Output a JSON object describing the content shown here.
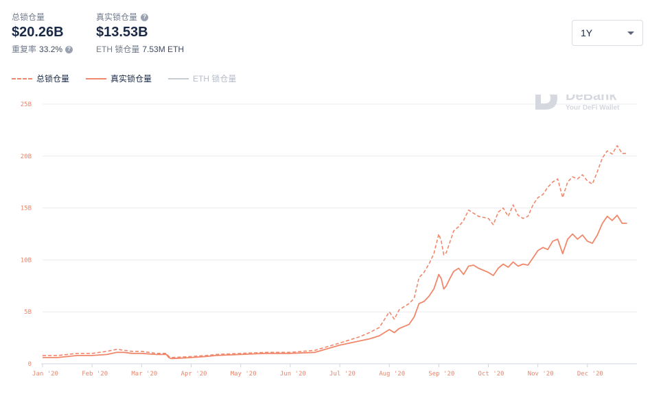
{
  "stats": {
    "total": {
      "label": "总锁仓量",
      "value": "$20.26B",
      "sub_label": "重复率",
      "sub_value": "33.2%"
    },
    "real": {
      "label": "真实锁仓量",
      "value": "$13.53B",
      "sub_label": "ETH 锁仓量",
      "sub_value": "7.53M ETH"
    }
  },
  "range": {
    "selected": "1Y"
  },
  "legend": [
    {
      "label": "总锁仓量",
      "style": "dashed",
      "active": true
    },
    {
      "label": "真实锁仓量",
      "style": "solid",
      "active": true
    },
    {
      "label": "ETH 锁仓量",
      "style": "solid",
      "active": false
    }
  ],
  "watermark": {
    "name": "DeBank",
    "tagline": "Your DeFi Wallet"
  },
  "colors": {
    "line": "#f0876a",
    "axis_text": "#e8846a",
    "grid": "#e9ecf0",
    "inactive": "#c8ccd3"
  },
  "chart_data": {
    "type": "line",
    "x_tick_labels": [
      "Jan '20",
      "Feb '20",
      "Mar '20",
      "Apr '20",
      "May '20",
      "Jun '20",
      "Jul '20",
      "Aug '20",
      "Sep '20",
      "Oct '20",
      "Nov '20",
      "Dec '20"
    ],
    "y_tick_labels": [
      "0",
      "5B",
      "10B",
      "15B",
      "20B",
      "25B"
    ],
    "ylim": [
      0,
      25
    ],
    "y_unit": "B",
    "grid": true,
    "legend_position": "top-left",
    "x": [
      0.0,
      0.3,
      0.5,
      0.7,
      1.0,
      1.3,
      1.5,
      1.65,
      1.8,
      2.0,
      2.3,
      2.5,
      2.55,
      2.6,
      2.8,
      3.0,
      3.3,
      3.5,
      4.0,
      4.5,
      5.0,
      5.5,
      6.0,
      6.2,
      6.4,
      6.6,
      6.8,
      7.0,
      7.1,
      7.2,
      7.3,
      7.4,
      7.5,
      7.6,
      7.7,
      7.8,
      7.9,
      8.0,
      8.05,
      8.1,
      8.15,
      8.2,
      8.3,
      8.4,
      8.5,
      8.6,
      8.7,
      8.8,
      9.0,
      9.1,
      9.2,
      9.3,
      9.4,
      9.5,
      9.6,
      9.7,
      9.8,
      9.9,
      10.0,
      10.1,
      10.2,
      10.3,
      10.4,
      10.5,
      10.6,
      10.7,
      10.8,
      10.9,
      11.0,
      11.1,
      11.2,
      11.3,
      11.4,
      11.5,
      11.6,
      11.7,
      11.8
    ],
    "series": [
      {
        "name": "总锁仓量",
        "style": "dashed",
        "values": [
          0.8,
          0.8,
          0.9,
          1.0,
          1.0,
          1.2,
          1.4,
          1.3,
          1.2,
          1.2,
          1.0,
          1.0,
          0.7,
          0.6,
          0.65,
          0.7,
          0.8,
          0.9,
          1.0,
          1.1,
          1.1,
          1.3,
          2.0,
          2.3,
          2.6,
          3.0,
          3.5,
          5.0,
          4.3,
          5.2,
          5.5,
          5.8,
          6.3,
          8.3,
          8.8,
          9.6,
          10.6,
          12.5,
          11.8,
          10.5,
          10.7,
          11.4,
          12.8,
          13.2,
          13.8,
          14.8,
          14.5,
          14.2,
          14.0,
          13.4,
          14.6,
          15.0,
          14.2,
          15.3,
          14.3,
          14.0,
          14.2,
          15.3,
          16.0,
          16.3,
          17.0,
          17.5,
          17.8,
          16.0,
          17.5,
          18.0,
          17.8,
          18.2,
          17.6,
          17.3,
          18.5,
          19.8,
          20.5,
          20.2,
          21.0,
          20.26,
          20.26
        ]
      },
      {
        "name": "真实锁仓量",
        "style": "solid",
        "values": [
          0.6,
          0.6,
          0.7,
          0.8,
          0.8,
          0.9,
          1.1,
          1.1,
          1.0,
          1.0,
          0.9,
          0.9,
          0.6,
          0.5,
          0.55,
          0.6,
          0.7,
          0.8,
          0.9,
          1.0,
          1.0,
          1.1,
          1.8,
          2.0,
          2.2,
          2.4,
          2.7,
          3.3,
          3.0,
          3.4,
          3.6,
          3.8,
          4.5,
          5.8,
          6.0,
          6.5,
          7.2,
          8.6,
          8.2,
          7.2,
          7.5,
          8.0,
          8.9,
          9.2,
          8.6,
          9.4,
          9.5,
          9.2,
          8.8,
          8.5,
          9.2,
          9.6,
          9.3,
          9.8,
          9.4,
          9.6,
          9.5,
          10.2,
          10.9,
          11.2,
          11.0,
          11.8,
          12.0,
          10.6,
          12.0,
          12.5,
          12.0,
          12.4,
          11.8,
          11.6,
          12.4,
          13.5,
          14.2,
          13.8,
          14.3,
          13.53,
          13.53
        ]
      }
    ]
  }
}
